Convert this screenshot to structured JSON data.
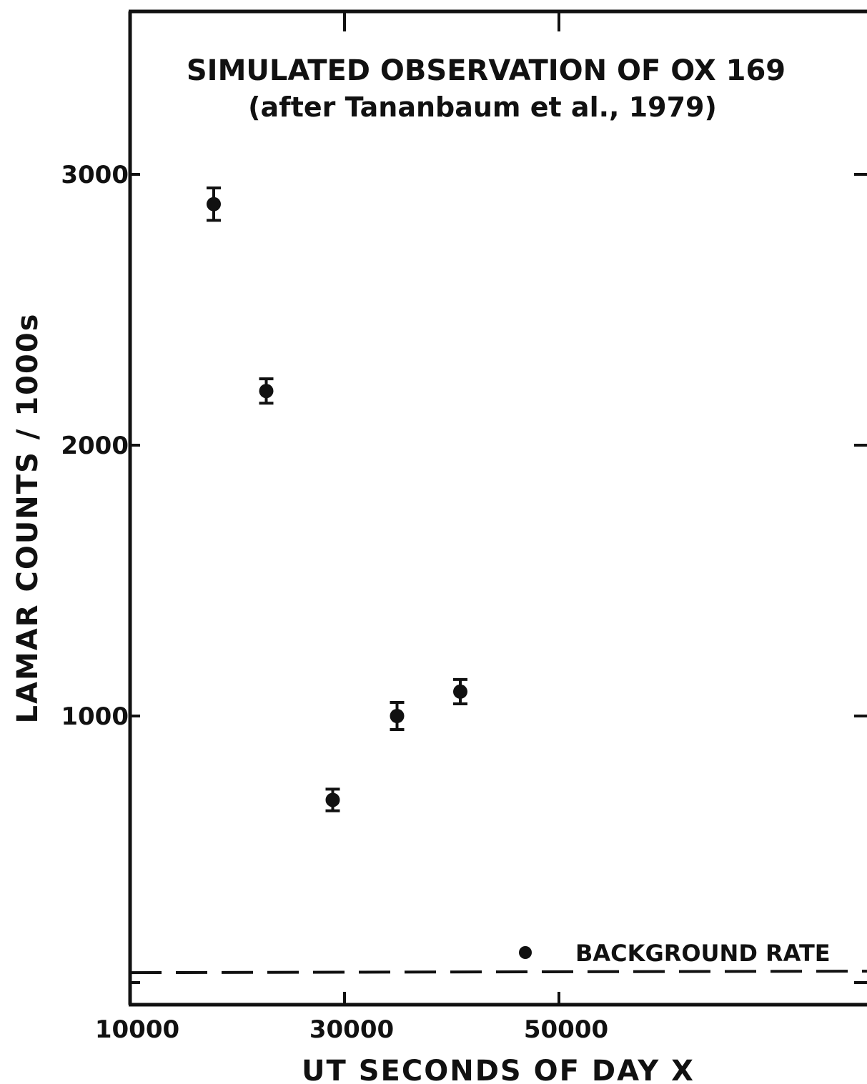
{
  "chart_data": {
    "type": "scatter",
    "title": "SIMULATED OBSERVATION OF OX 169",
    "subtitle": "(after Tananbaum et al., 1979)",
    "xlabel": "UT SECONDS OF DAY X",
    "ylabel": "LAMAR COUNTS / 1000s",
    "xlim": [
      10000,
      58000
    ],
    "ylim": [
      -70,
      3600
    ],
    "x_ticks": [
      {
        "value": 10000,
        "label": "10000"
      },
      {
        "value": 30000,
        "label": "30000"
      },
      {
        "value": 50000,
        "label": "50000"
      }
    ],
    "y_ticks": [
      {
        "value": 1000,
        "label": "1000"
      },
      {
        "value": 2000,
        "label": "2000"
      },
      {
        "value": 3000,
        "label": "3000"
      }
    ],
    "series": [
      {
        "points": [
          {
            "x": 17800,
            "y": 2890,
            "err": 60
          },
          {
            "x": 22700,
            "y": 2200,
            "err": 45
          },
          {
            "x": 28900,
            "y": 690,
            "err": 40
          },
          {
            "x": 34900,
            "y": 1000,
            "err": 50
          },
          {
            "x": 40800,
            "y": 1090,
            "err": 45
          }
        ]
      }
    ],
    "reference_line": {
      "label": "BACKGROUND RATE",
      "y": 100,
      "style": "dashed"
    },
    "legend_position": "bottom-right",
    "grid": false,
    "color": "#111111"
  }
}
